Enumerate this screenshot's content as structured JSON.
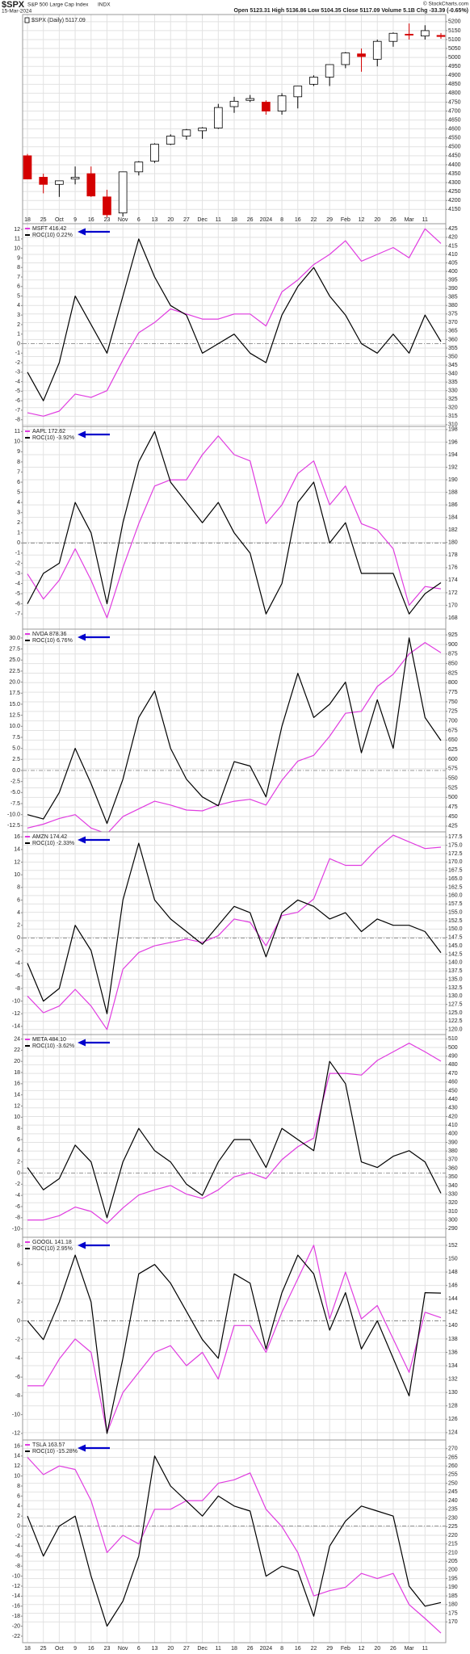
{
  "header": {
    "symbol": "$SPX",
    "name": "S&P 500 Large Cap Index",
    "exchange": "INDX",
    "date": "15-Mar-2024",
    "quote": "Open 5123.31 High 5136.86 Low 5104.35 Close 5117.09 Volume 5.1B Chg -33.39 (-0.65%)",
    "copyright": "© StockCharts.com"
  },
  "chart_data": [
    {
      "type": "candlestick",
      "axis_side": "right",
      "categories": [
        "18",
        "25",
        "Oct",
        "9",
        "16",
        "23",
        "Nov",
        "6",
        "13",
        "20",
        "27",
        "Dec",
        "11",
        "18",
        "26",
        "2024",
        "8",
        "16",
        "22",
        "29",
        "Feb",
        "12",
        "20",
        "26",
        "Mar",
        "11",
        null
      ],
      "ylim": [
        4070,
        5240
      ],
      "yticks": [
        5200,
        5150,
        5100,
        5050,
        5000,
        4950,
        4900,
        4850,
        4800,
        4750,
        4700,
        4650,
        4600,
        4550,
        4500,
        4450,
        4400,
        4350,
        4300,
        4250,
        4200,
        4150
      ],
      "up_color": "#000000",
      "down_color": "#d40000",
      "series": [
        {
          "name": "$SPX (Daily) 5117.09",
          "open": [
            4450,
            4330,
            4290,
            4320,
            4350,
            4220,
            4130,
            4360,
            4420,
            4515,
            4560,
            4590,
            4605,
            4725,
            4760,
            4750,
            4700,
            4780,
            4850,
            4890,
            4960,
            5020,
            4990,
            5090,
            5130,
            5120,
            5123.31
          ],
          "high": [
            4460,
            4350,
            4310,
            4390,
            4390,
            4260,
            4360,
            4420,
            4520,
            4570,
            4600,
            4610,
            4740,
            4780,
            4790,
            4760,
            4800,
            4840,
            4900,
            4960,
            5030,
            5050,
            5100,
            5140,
            5190,
            5180,
            5136.86
          ],
          "low": [
            4320,
            4240,
            4220,
            4290,
            4220,
            4105,
            4110,
            4340,
            4410,
            4510,
            4540,
            4545,
            4600,
            4690,
            4750,
            4680,
            4680,
            4715,
            4840,
            4840,
            4940,
            4920,
            4950,
            5060,
            5100,
            5100,
            5104.35
          ],
          "close": [
            4320,
            4290,
            4310,
            4330,
            4225,
            4120,
            4360,
            4415,
            4515,
            4560,
            4595,
            4605,
            4720,
            4755,
            4770,
            4700,
            4785,
            4840,
            4890,
            4960,
            5025,
            5005,
            5090,
            5135,
            5125,
            5150,
            5117.09
          ]
        }
      ]
    },
    {
      "type": "line",
      "ylim": [
        -8.7,
        12.6
      ],
      "yticks": [
        12,
        11,
        10,
        9,
        8,
        7,
        6,
        5,
        4,
        3,
        2,
        1,
        0,
        -1,
        -2,
        -3,
        -4,
        -5,
        -6,
        -7,
        -8
      ],
      "y2lim": [
        309,
        428
      ],
      "y2ticks": [
        425,
        420,
        415,
        410,
        405,
        400,
        395,
        390,
        385,
        380,
        375,
        370,
        365,
        360,
        355,
        350,
        345,
        340,
        335,
        330,
        325,
        320,
        315,
        310
      ],
      "hline": 0,
      "series": [
        {
          "name": "MSFT 416.42",
          "color": "#e03ce0",
          "axis": "y2",
          "values": [
            317,
            315,
            318,
            328,
            326,
            330,
            348,
            364,
            370,
            378,
            375,
            372,
            372,
            375,
            375,
            368,
            388,
            395,
            404,
            410,
            418,
            406,
            410,
            414,
            408,
            425,
            416.42
          ]
        },
        {
          "name": "ROC(10) 0.22%",
          "color": "#000000",
          "values": [
            -3,
            -6,
            -2,
            5,
            2,
            -1,
            5,
            11,
            7,
            4,
            3,
            -1,
            0,
            1,
            -1,
            -2,
            3,
            6,
            8,
            5,
            3,
            0,
            -1,
            1,
            -1,
            3,
            0.22
          ]
        }
      ]
    },
    {
      "type": "line",
      "ylim": [
        -8.5,
        11.5
      ],
      "yticks": [
        11,
        10,
        9,
        8,
        7,
        6,
        5,
        4,
        3,
        2,
        1,
        0,
        -1,
        -2,
        -3,
        -4,
        -5,
        -6,
        -7
      ],
      "y2lim": [
        166.2,
        198.5
      ],
      "y2ticks": [
        198,
        196,
        194,
        192,
        190,
        188,
        186,
        184,
        182,
        180,
        178,
        176,
        174,
        172,
        170,
        168
      ],
      "hline": 0,
      "series": [
        {
          "name": "AAPL 172.62",
          "color": "#e03ce0",
          "axis": "y2",
          "values": [
            175,
            171,
            174,
            179,
            174,
            168,
            176,
            183,
            189,
            190,
            190,
            194,
            197,
            194,
            193,
            183,
            186,
            191,
            193,
            186,
            189,
            183,
            182,
            179,
            170,
            173,
            172.62
          ]
        },
        {
          "name": "ROC(10) -3.92%",
          "color": "#000000",
          "values": [
            -6,
            -3,
            -2,
            4,
            1,
            -6,
            2,
            8,
            11,
            6,
            4,
            2,
            4,
            1,
            -1,
            -7,
            -4,
            4,
            6,
            0,
            2,
            -3,
            -3,
            -3,
            -7,
            -5,
            -3.92
          ]
        }
      ]
    },
    {
      "type": "line",
      "ylim": [
        -13.9,
        32
      ],
      "yticks": [
        {
          "value": 30,
          "label": "30.0"
        },
        27.5,
        {
          "value": 25,
          "label": "25.0"
        },
        22.5,
        {
          "value": 20,
          "label": "20.0"
        },
        17.5,
        {
          "value": 15,
          "label": "15.0"
        },
        12.5,
        {
          "value": 10,
          "label": "10.0"
        },
        7.5,
        {
          "value": 5,
          "label": "5.0"
        },
        2.5,
        {
          "value": 0,
          "label": "0.0"
        },
        -2.5,
        {
          "value": -5,
          "label": "-5.0"
        },
        -7.5,
        {
          "value": -10,
          "label": "-10.0"
        },
        -12.5
      ],
      "y2lim": [
        410,
        940
      ],
      "y2ticks": [
        925,
        900,
        875,
        850,
        825,
        800,
        775,
        750,
        725,
        700,
        675,
        650,
        625,
        600,
        575,
        550,
        525,
        500,
        475,
        450,
        425
      ],
      "hline": 0,
      "series": [
        {
          "name": "NVDA 878.36",
          "color": "#e03ce0",
          "axis": "y2",
          "values": [
            420,
            430,
            445,
            455,
            420,
            405,
            450,
            470,
            490,
            480,
            467,
            465,
            480,
            490,
            495,
            480,
            545,
            595,
            610,
            660,
            720,
            725,
            790,
            822,
            875,
            905,
            878.36
          ]
        },
        {
          "name": "ROC(10) 6.76%",
          "color": "#000000",
          "values": [
            -10,
            -11,
            -5,
            5,
            -3,
            -12,
            -2,
            12,
            18,
            5,
            -2,
            -6,
            -8,
            2,
            1,
            -6,
            10,
            22,
            12,
            15,
            20,
            4,
            16,
            5,
            30,
            12,
            6.76
          ]
        }
      ]
    },
    {
      "type": "line",
      "ylim": [
        -15.3,
        16.8
      ],
      "yticks": [
        16,
        14,
        12,
        10,
        8,
        6,
        4,
        2,
        0,
        -2,
        -4,
        -6,
        -8,
        -10,
        -12,
        -14
      ],
      "y2lim": [
        118.5,
        179
      ],
      "y2ticks": [
        177.5,
        {
          "value": 175,
          "label": "175.0"
        },
        172.5,
        {
          "value": 170,
          "label": "170.0"
        },
        167.5,
        {
          "value": 165,
          "label": "165.0"
        },
        162.5,
        {
          "value": 160,
          "label": "160.0"
        },
        157.5,
        {
          "value": 155,
          "label": "155.0"
        },
        152.5,
        {
          "value": 150,
          "label": "150.0"
        },
        147.5,
        {
          "value": 145,
          "label": "145.0"
        },
        142.5,
        {
          "value": 140,
          "label": "140.0"
        },
        137.5,
        {
          "value": 135,
          "label": "135.0"
        },
        132.5,
        {
          "value": 130,
          "label": "130.0"
        },
        127.5,
        {
          "value": 125,
          "label": "125.0"
        },
        122.5,
        {
          "value": 120,
          "label": "120.0"
        }
      ],
      "hline": 0,
      "series": [
        {
          "name": "AMZN 174.42",
          "color": "#e03ce0",
          "axis": "y2",
          "values": [
            130,
            125,
            127,
            132,
            127,
            120,
            138,
            143,
            145,
            146,
            147,
            146,
            148,
            153,
            152,
            145,
            154,
            155,
            159,
            171,
            169,
            169,
            174,
            178,
            176,
            174,
            174.42
          ]
        },
        {
          "name": "ROC(10) -2.33%",
          "color": "#000000",
          "values": [
            -4,
            -10,
            -8,
            2,
            -2,
            -12,
            6,
            15,
            6,
            3,
            1,
            -1,
            2,
            5,
            4,
            -3,
            4,
            6,
            5,
            3,
            4,
            1,
            3,
            2,
            2,
            1,
            -2.33
          ]
        }
      ]
    },
    {
      "type": "line",
      "ylim": [
        -11.5,
        24.8
      ],
      "yticks": [
        24,
        22,
        20,
        18,
        16,
        14,
        12,
        10,
        8,
        6,
        4,
        2,
        0,
        -2,
        -4,
        -6,
        -8,
        -10
      ],
      "y2lim": [
        280,
        515
      ],
      "y2ticks": [
        510,
        500,
        490,
        480,
        470,
        460,
        450,
        440,
        430,
        420,
        410,
        400,
        390,
        380,
        370,
        360,
        350,
        340,
        330,
        320,
        310,
        300,
        290
      ],
      "hline": 0,
      "series": [
        {
          "name": "META 484.10",
          "color": "#e03ce0",
          "axis": "y2",
          "values": [
            300,
            300,
            305,
            315,
            310,
            296,
            314,
            329,
            335,
            340,
            330,
            325,
            335,
            350,
            355,
            348,
            370,
            385,
            395,
            470,
            470,
            468,
            485,
            495,
            505,
            495,
            484.1
          ]
        },
        {
          "name": "ROC(10) -3.62%",
          "color": "#000000",
          "values": [
            1,
            -3,
            -1,
            5,
            2,
            -8,
            2,
            8,
            4,
            2,
            -2,
            -4,
            2,
            6,
            6,
            1,
            8,
            6,
            4,
            20,
            16,
            2,
            1,
            3,
            4,
            2,
            -3.62
          ]
        }
      ]
    },
    {
      "type": "line",
      "ylim": [
        -12.7,
        8.9
      ],
      "yticks": [
        8,
        6,
        4,
        2,
        0,
        -2,
        -4,
        -6,
        -8,
        -10,
        -12
      ],
      "y2lim": [
        122.9,
        153.2
      ],
      "y2ticks": [
        152,
        150,
        148,
        146,
        144,
        142,
        140,
        138,
        136,
        134,
        132,
        130,
        128,
        126,
        124
      ],
      "hline": 0,
      "series": [
        {
          "name": "GOOGL 141.18",
          "color": "#e03ce0",
          "axis": "y2",
          "values": [
            131,
            131,
            135,
            138,
            136,
            124,
            130,
            133,
            136,
            137,
            134,
            136,
            132,
            140,
            140,
            136,
            142,
            147,
            152,
            141,
            148,
            141,
            143,
            138,
            133,
            142,
            141.18
          ]
        },
        {
          "name": "ROC(10) 2.95%",
          "color": "#000000",
          "values": [
            0,
            -2,
            2,
            7,
            2,
            -12,
            -4,
            5,
            6,
            4,
            1,
            -2,
            -4,
            5,
            4,
            -3,
            3,
            7,
            5,
            -1,
            3,
            -3,
            0,
            -4,
            -8,
            3,
            2.95
          ]
        }
      ]
    },
    {
      "type": "line",
      "categories": [
        "18",
        "25",
        "Oct",
        "9",
        "16",
        "23",
        "Nov",
        "6",
        "13",
        "20",
        "27",
        "Dec",
        "11",
        "18",
        "26",
        "2024",
        "8",
        "16",
        "22",
        "29",
        "Feb",
        "12",
        "20",
        "26",
        "Mar",
        "11",
        null
      ],
      "ylim": [
        -23.3,
        17.2
      ],
      "yticks": [
        16,
        14,
        12,
        10,
        8,
        6,
        4,
        2,
        0,
        -2,
        -4,
        -6,
        -8,
        -10,
        -12,
        -14,
        -16,
        -18,
        -20,
        -22
      ],
      "y2lim": [
        158,
        275
      ],
      "y2ticks": [
        270,
        265,
        260,
        255,
        250,
        245,
        240,
        235,
        230,
        225,
        220,
        215,
        210,
        205,
        200,
        195,
        190,
        185,
        180,
        175,
        170
      ],
      "hline": 0,
      "series": [
        {
          "name": "TSLA 163.57",
          "color": "#e03ce0",
          "axis": "y2",
          "values": [
            265,
            255,
            260,
            258,
            240,
            210,
            220,
            215,
            235,
            235,
            240,
            240,
            250,
            252,
            256,
            235,
            225,
            210,
            185,
            188,
            190,
            198,
            195,
            198,
            180,
            172,
            163.57
          ]
        },
        {
          "name": "ROC(10) -15.28%",
          "color": "#000000",
          "values": [
            2,
            -6,
            0,
            2,
            -10,
            -20,
            -15,
            -6,
            14,
            8,
            5,
            2,
            6,
            4,
            3,
            -10,
            -8,
            -9,
            -18,
            -4,
            1,
            4,
            3,
            2,
            -12,
            -16,
            -15.28
          ]
        }
      ]
    }
  ]
}
